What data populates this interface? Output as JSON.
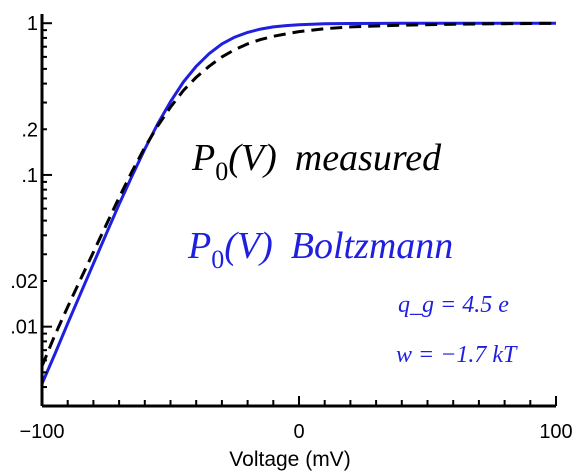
{
  "chart_data": {
    "type": "line",
    "xlabel": "Voltage (mV)",
    "ylabel": "",
    "xlim": [
      -100,
      100
    ],
    "ylim": [
      0.003,
      1.15
    ],
    "yscale": "log",
    "x_ticks": [
      -100,
      0,
      100
    ],
    "x_tick_labels": [
      "−100",
      "0",
      "100"
    ],
    "y_ticks": [
      0.01,
      0.02,
      0.1,
      0.2,
      1
    ],
    "y_tick_labels": [
      ".01",
      ".02",
      ".1",
      ".2",
      "1"
    ],
    "legend": {
      "measured": {
        "base": "P",
        "sub": "0",
        "args": "(V)",
        "name": "measured"
      },
      "boltzmann": {
        "base": "P",
        "sub": "0",
        "args": "(V)",
        "name": "Boltzmann"
      }
    },
    "annotations": [
      "q_g = 4.5 e",
      "w = −1.7 kT"
    ],
    "colors": {
      "measured": "#000000",
      "boltzmann": "#1f1fe0"
    },
    "series": [
      {
        "key": "boltzmann",
        "style": "solid",
        "x": [
          -100,
          -95,
          -90,
          -85,
          -80,
          -75,
          -70,
          -65,
          -60,
          -55,
          -50,
          -45,
          -40,
          -35,
          -30,
          -25,
          -20,
          -15,
          -10,
          -5,
          0,
          10,
          20,
          40,
          60,
          80,
          100
        ],
        "y": [
          0.0042,
          0.0066,
          0.0105,
          0.0165,
          0.026,
          0.041,
          0.064,
          0.098,
          0.148,
          0.217,
          0.304,
          0.41,
          0.52,
          0.63,
          0.73,
          0.81,
          0.87,
          0.915,
          0.945,
          0.965,
          0.978,
          0.991,
          0.996,
          0.999,
          1.0,
          1.0,
          1.0
        ]
      },
      {
        "key": "measured",
        "style": "dashed",
        "x": [
          -100,
          -95,
          -90,
          -85,
          -80,
          -75,
          -70,
          -65,
          -60,
          -55,
          -50,
          -45,
          -40,
          -35,
          -30,
          -25,
          -20,
          -15,
          -10,
          -5,
          0,
          10,
          20,
          40,
          60,
          80,
          100
        ],
        "y": [
          0.0055,
          0.0088,
          0.0135,
          0.0205,
          0.031,
          0.047,
          0.071,
          0.105,
          0.152,
          0.21,
          0.28,
          0.36,
          0.44,
          0.52,
          0.6,
          0.67,
          0.73,
          0.78,
          0.82,
          0.85,
          0.88,
          0.92,
          0.945,
          0.97,
          0.985,
          0.993,
          0.998
        ]
      }
    ]
  }
}
